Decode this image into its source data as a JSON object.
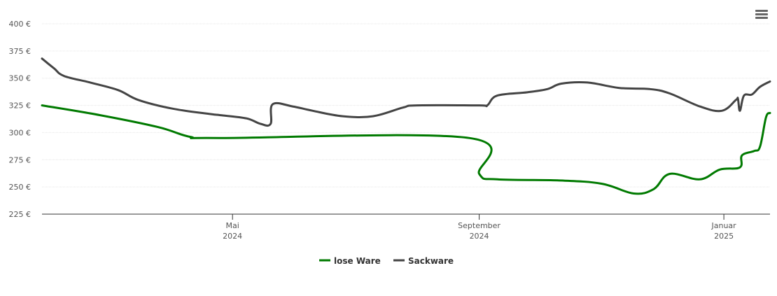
{
  "chart_data": {
    "type": "line",
    "title": "",
    "xlabel": "",
    "ylabel": "",
    "ylim": [
      225,
      400
    ],
    "grid": true,
    "legend_position": "bottom-center",
    "y_ticks": [
      "225 €",
      "250 €",
      "275 €",
      "300 €",
      "325 €",
      "350 €",
      "375 €",
      "400 €"
    ],
    "y_tick_values": [
      225,
      250,
      275,
      300,
      325,
      350,
      375,
      400
    ],
    "x_ticks": [
      {
        "date": "2024-05-01",
        "month": "Mai",
        "year": "2024"
      },
      {
        "date": "2024-09-01",
        "month": "September",
        "year": "2024"
      },
      {
        "date": "2025-01-01",
        "month": "Januar",
        "year": "2025"
      }
    ],
    "x_range": [
      "2024-01-27",
      "2025-01-24"
    ],
    "series": [
      {
        "name": "lose Ware",
        "color": "#007a00",
        "points": [
          [
            "2024-01-27",
            325
          ],
          [
            "2024-02-25",
            316
          ],
          [
            "2024-03-25",
            305
          ],
          [
            "2024-04-10",
            296
          ],
          [
            "2024-04-25",
            295
          ],
          [
            "2024-08-27",
            295
          ],
          [
            "2024-09-01",
            262
          ],
          [
            "2024-09-10",
            257
          ],
          [
            "2024-10-10",
            256
          ],
          [
            "2024-11-01",
            253
          ],
          [
            "2024-11-17",
            244
          ],
          [
            "2024-11-27",
            248
          ],
          [
            "2024-12-05",
            262
          ],
          [
            "2024-12-20",
            257
          ],
          [
            "2024-12-30",
            266
          ],
          [
            "2025-01-09",
            268
          ],
          [
            "2025-01-10",
            279
          ],
          [
            "2025-01-16",
            283
          ],
          [
            "2025-01-19",
            287
          ],
          [
            "2025-01-22",
            314
          ],
          [
            "2025-01-24",
            318
          ]
        ]
      },
      {
        "name": "Sackware",
        "color": "#444444",
        "points": [
          [
            "2024-01-27",
            368
          ],
          [
            "2024-02-02",
            359
          ],
          [
            "2024-02-07",
            352
          ],
          [
            "2024-02-20",
            346
          ],
          [
            "2024-03-05",
            339
          ],
          [
            "2024-03-15",
            330
          ],
          [
            "2024-04-01",
            322
          ],
          [
            "2024-04-20",
            317
          ],
          [
            "2024-04-25",
            316
          ],
          [
            "2024-05-08",
            313
          ],
          [
            "2024-05-15",
            308
          ],
          [
            "2024-05-20",
            308
          ],
          [
            "2024-05-21",
            326
          ],
          [
            "2024-05-31",
            324
          ],
          [
            "2024-06-10",
            320
          ],
          [
            "2024-06-25",
            315
          ],
          [
            "2024-07-10",
            315
          ],
          [
            "2024-07-25",
            323
          ],
          [
            "2024-08-01",
            325
          ],
          [
            "2024-09-01",
            325
          ],
          [
            "2024-09-05",
            325
          ],
          [
            "2024-09-10",
            334
          ],
          [
            "2024-09-25",
            337
          ],
          [
            "2024-10-05",
            340
          ],
          [
            "2024-10-12",
            345
          ],
          [
            "2024-10-25",
            346
          ],
          [
            "2024-11-10",
            341
          ],
          [
            "2024-11-25",
            340
          ],
          [
            "2024-12-05",
            336
          ],
          [
            "2024-12-20",
            324
          ],
          [
            "2024-12-31",
            320
          ],
          [
            "2025-01-07",
            330
          ],
          [
            "2025-01-08",
            331
          ],
          [
            "2025-01-09",
            320
          ],
          [
            "2025-01-11",
            334
          ],
          [
            "2025-01-15",
            335
          ],
          [
            "2025-01-19",
            342
          ],
          [
            "2025-01-24",
            347
          ]
        ]
      }
    ]
  },
  "menu": {
    "icon": "hamburger-menu-icon"
  }
}
